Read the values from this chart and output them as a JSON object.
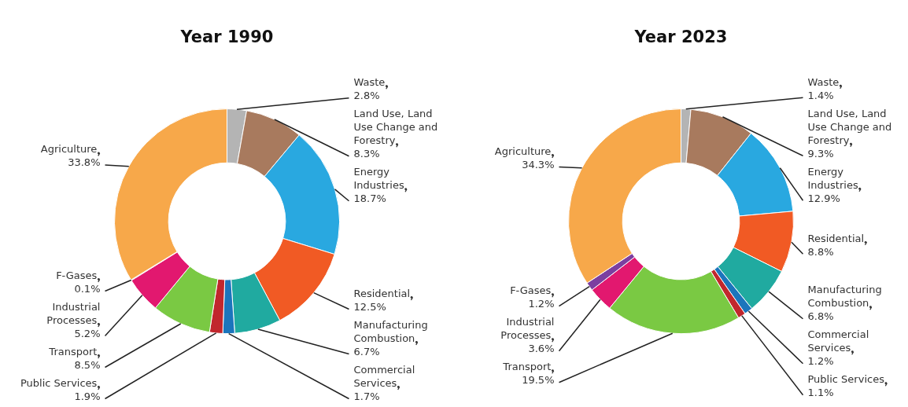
{
  "chart_data": [
    {
      "type": "donut",
      "title": "Year 1990",
      "categories": [
        "Waste",
        "Land Use, Land Use Change and Forestry",
        "Energy Industries",
        "Residential",
        "Manufacturing Combustion",
        "Commercial Services",
        "Public Services",
        "Transport",
        "Industrial Processes",
        "F-Gases",
        "Agriculture"
      ],
      "values": [
        2.8,
        8.3,
        18.7,
        12.5,
        6.7,
        1.7,
        1.9,
        8.5,
        5.2,
        0.1,
        33.8
      ],
      "value_labels": [
        "2.8%",
        "8.3%",
        "18.7%",
        "12.5%",
        "6.7%",
        "1.7%",
        "1.9%",
        "8.5%",
        "5.2%",
        "0.1%",
        "33.8%"
      ],
      "colors": [
        "#b4b4b4",
        "#a87a5e",
        "#29a8e0",
        "#f15a24",
        "#20aaa0",
        "#1b75bc",
        "#c1272d",
        "#7ac943",
        "#e2186f",
        "#7b3fa0",
        "#f7a84a"
      ],
      "legend": false
    },
    {
      "type": "donut",
      "title": "Year 2023",
      "categories": [
        "Waste",
        "Land Use, Land Use Change and Forestry",
        "Energy Industries",
        "Residential",
        "Manufacturing Combustion",
        "Commercial Services",
        "Public Services",
        "Transport",
        "Industrial Processes",
        "F-Gases",
        "Agriculture"
      ],
      "values": [
        1.4,
        9.3,
        12.9,
        8.8,
        6.8,
        1.2,
        1.1,
        19.5,
        3.6,
        1.2,
        34.3
      ],
      "value_labels": [
        "1.4%",
        "9.3%",
        "12.9%",
        "8.8%",
        "6.8%",
        "1.2%",
        "1.1%",
        "19.5%",
        "3.6%",
        "1.2%",
        "34.3%"
      ],
      "colors": [
        "#b4b4b4",
        "#a87a5e",
        "#29a8e0",
        "#f15a24",
        "#20aaa0",
        "#1b75bc",
        "#c1272d",
        "#7ac943",
        "#e2186f",
        "#7b3fa0",
        "#f7a84a"
      ],
      "legend": false
    }
  ]
}
